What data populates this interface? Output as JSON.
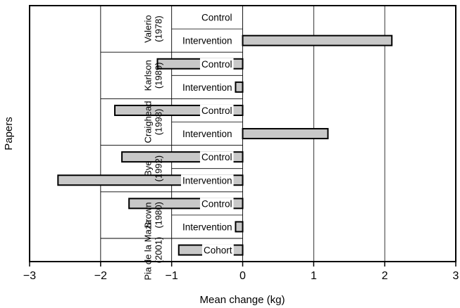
{
  "chart_data": {
    "type": "bar",
    "orientation": "horizontal",
    "xlabel": "Mean change (kg)",
    "ylabel": "Papers",
    "xlim": [
      -3,
      3
    ],
    "xticks": [
      "−3",
      "−2",
      "−1",
      "0",
      "1",
      "2",
      "3"
    ],
    "grid": "vertical lines at x = 1 and x = 2",
    "bar_color": "#c8c8c8",
    "groups": [
      {
        "label": "Valerio (1978)",
        "rows": [
          {
            "category": "Control",
            "value": 0
          },
          {
            "category": "Intervention",
            "value": 2.1
          }
        ]
      },
      {
        "label": "Karlson (1989)",
        "rows": [
          {
            "category": "Control",
            "value": -1.2
          },
          {
            "category": "Intervention",
            "value": -0.1
          }
        ]
      },
      {
        "label": "Craighead (1998)",
        "rows": [
          {
            "category": "Control",
            "value": -1.8
          },
          {
            "category": "Intervention",
            "value": 1.2
          }
        ]
      },
      {
        "label": "Bye (1992)",
        "rows": [
          {
            "category": "Control",
            "value": -1.7
          },
          {
            "category": "Intervention",
            "value": -2.6
          }
        ]
      },
      {
        "label": "Brown (1980)",
        "rows": [
          {
            "category": "Control",
            "value": -1.6
          },
          {
            "category": "Intervention",
            "value": -0.1
          }
        ]
      },
      {
        "label": "Pia de la Maza (2001)",
        "rows": [
          {
            "category": "Cohort",
            "value": -0.9
          }
        ]
      }
    ]
  }
}
